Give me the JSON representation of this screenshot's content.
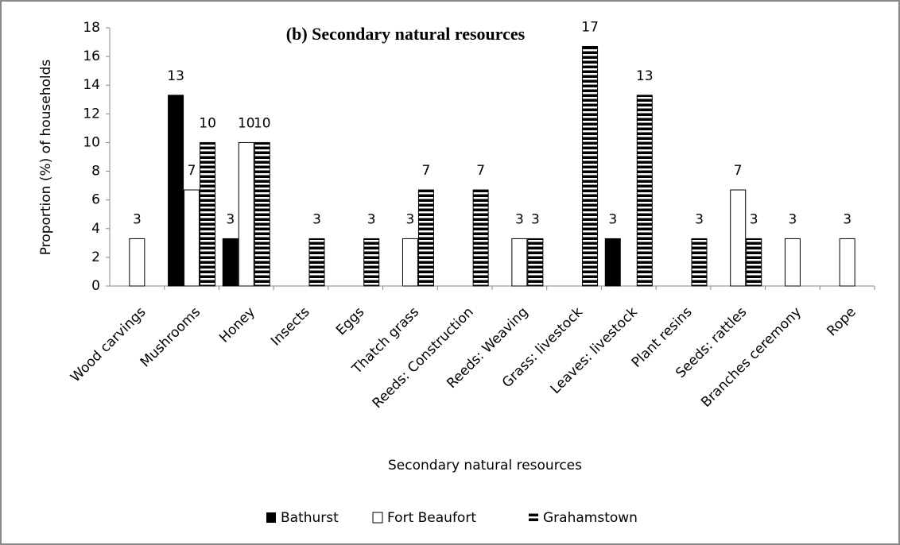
{
  "chart_data": {
    "type": "bar",
    "title": "(b) Secondary natural resources",
    "x_label": "Secondary natural resources",
    "y_label": "Proportion (%) of households",
    "categories": [
      "Wood carvings",
      "Mushrooms",
      "Honey",
      "Insects",
      "Eggs",
      "Thatch grass",
      "Reeds: Construction",
      "Reeds: Weaving",
      "Grass: livestock",
      "Leaves: livestock",
      "Plant resins",
      "Seeds: rattles",
      "Branches ceremony",
      "Rope"
    ],
    "series": [
      {
        "name": "Bathurst",
        "color": "#000000",
        "pattern": "solid",
        "values": [
          null,
          13.3,
          3.3,
          null,
          null,
          null,
          null,
          null,
          null,
          3.3,
          null,
          null,
          null,
          null
        ],
        "value_labels": [
          null,
          "13",
          "3",
          null,
          null,
          null,
          null,
          null,
          null,
          "3",
          null,
          null,
          null,
          null
        ]
      },
      {
        "name": "Fort Beaufort",
        "color": "#ffffff",
        "pattern": "solid",
        "values": [
          3.3,
          6.7,
          10,
          null,
          null,
          3.3,
          null,
          3.3,
          null,
          null,
          null,
          6.7,
          3.3,
          3.3
        ],
        "value_labels": [
          "3",
          "7",
          "10",
          null,
          null,
          "3",
          null,
          "3",
          null,
          null,
          null,
          "7",
          "3",
          "3"
        ]
      },
      {
        "name": "Grahamstown",
        "color": "#000000",
        "pattern": "horizontal-stripes",
        "values": [
          null,
          10,
          10,
          3.3,
          3.3,
          6.7,
          6.7,
          3.3,
          16.7,
          13.3,
          3.3,
          3.3,
          null,
          null
        ],
        "value_labels": [
          null,
          "10",
          "10",
          "3",
          "3",
          "7",
          "7",
          "3",
          "17",
          "13",
          "3",
          "3",
          null,
          null
        ]
      }
    ],
    "ylim": [
      0,
      18
    ],
    "yticks": [
      0,
      2,
      4,
      6,
      8,
      10,
      12,
      14,
      16,
      18
    ],
    "grid": false,
    "legend": "bottom"
  }
}
